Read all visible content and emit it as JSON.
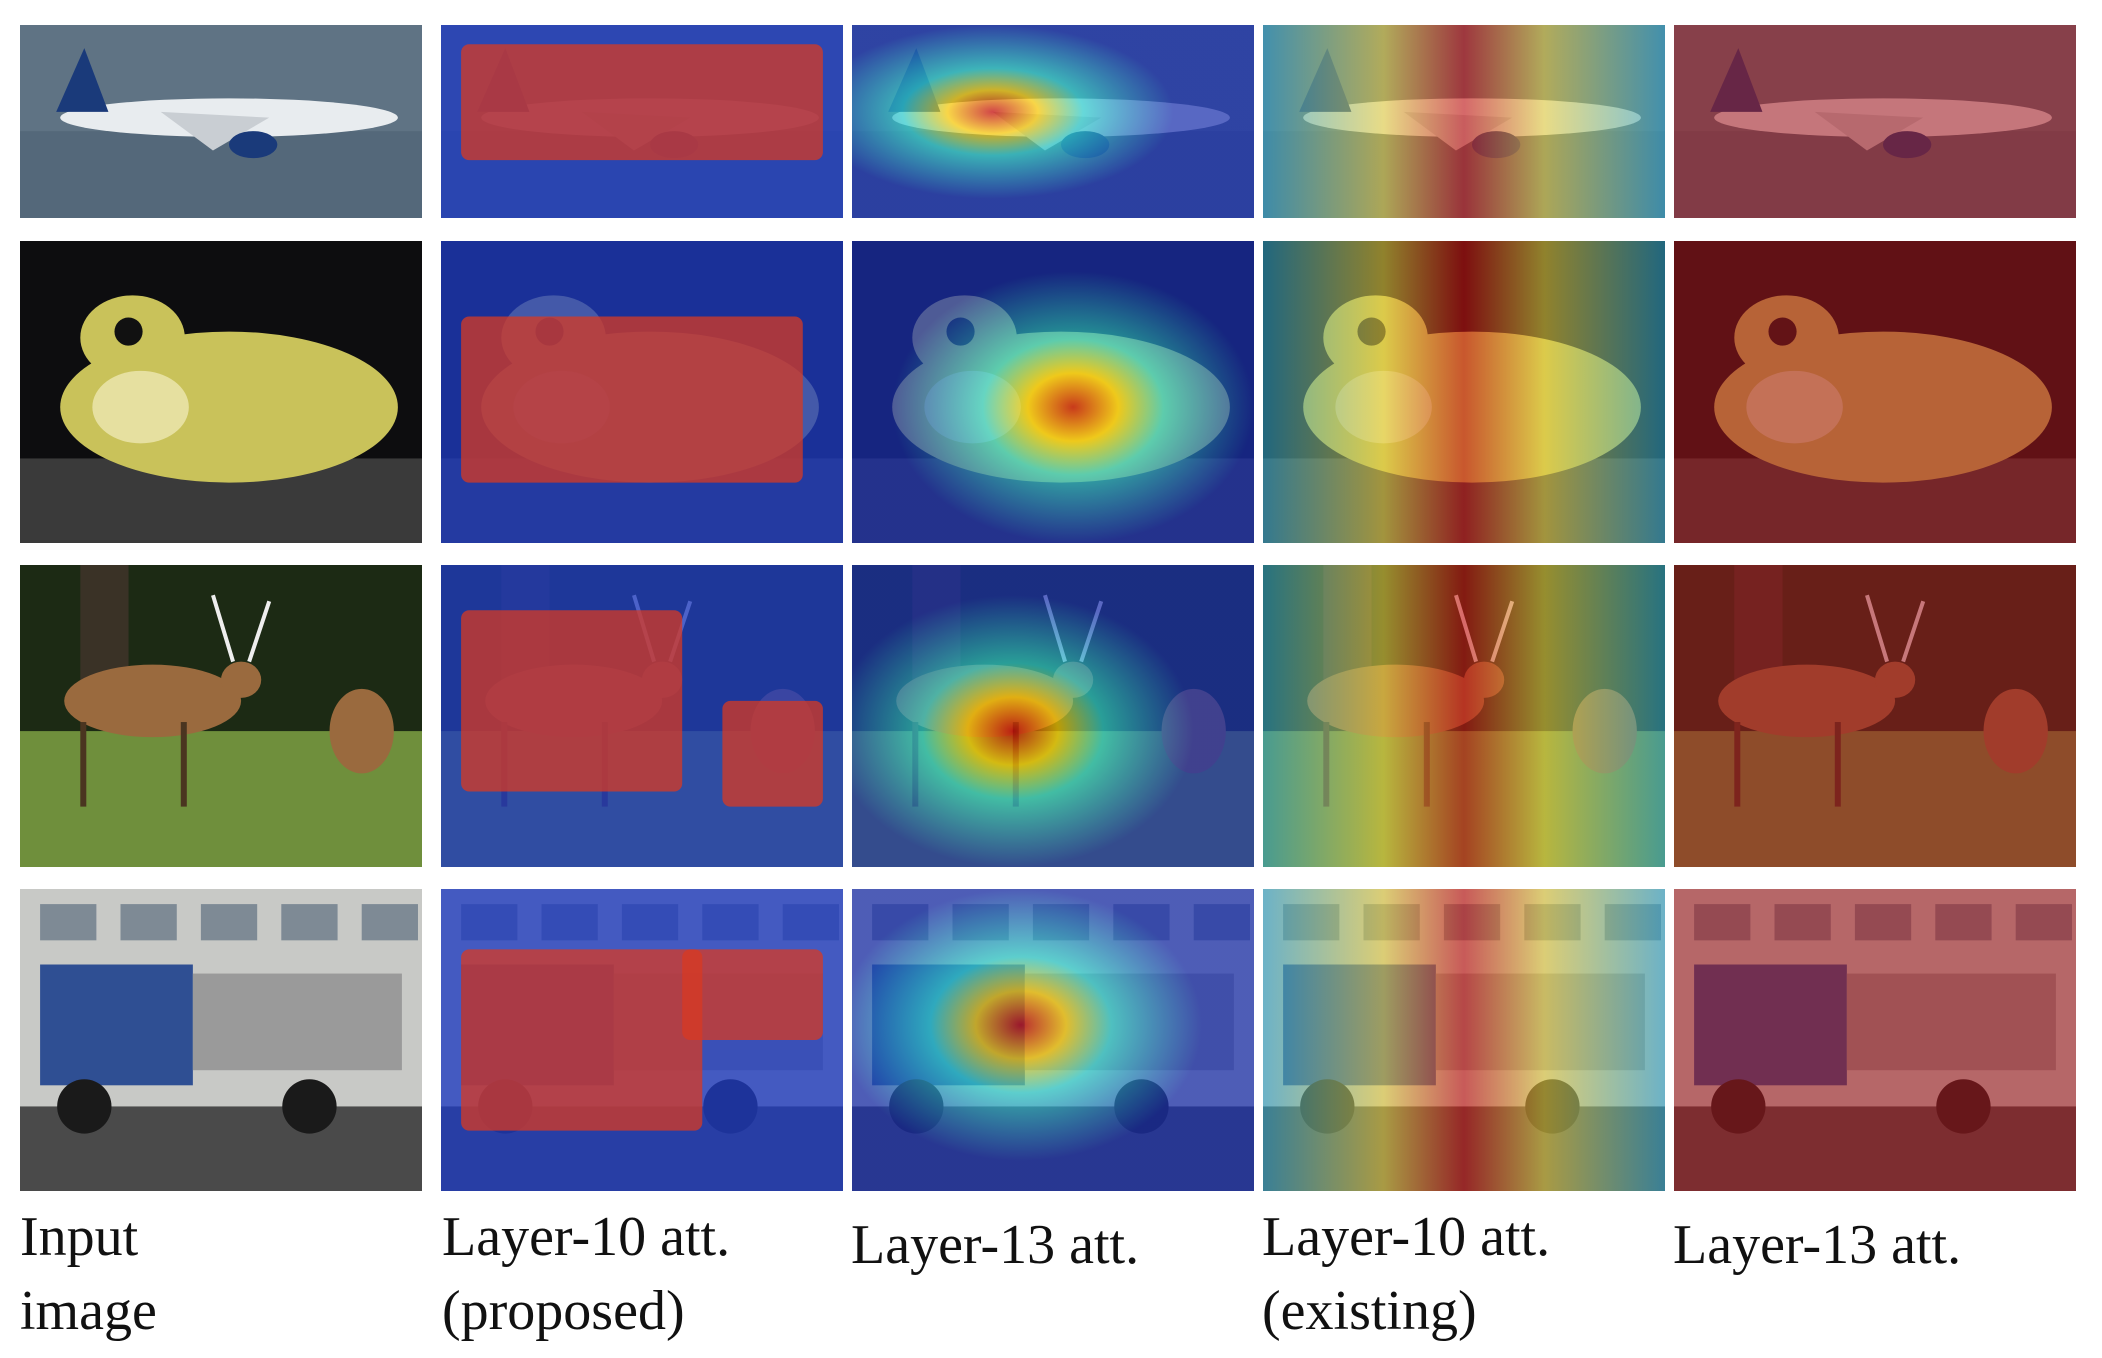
{
  "figure": {
    "rows": [
      {
        "subject": "airplane",
        "colors": {
          "bg": "#5f7384",
          "bg2": "#4a5d70",
          "main": "#e8ecef",
          "accent": "#1a3a7a"
        }
      },
      {
        "subject": "frog",
        "colors": {
          "bg": "#0d0d0f",
          "bg2": "#3a3a3a",
          "main": "#c9c25a",
          "accent": "#e6e0a0"
        }
      },
      {
        "subject": "deer",
        "colors": {
          "bg": "#3c5a2e",
          "bg2": "#1c2a14",
          "main": "#9a6a3e",
          "accent": "#6f8f3c"
        }
      },
      {
        "subject": "truck",
        "colors": {
          "bg": "#c8c9c6",
          "bg2": "#4a4a4a",
          "main": "#2f4f93",
          "accent": "#9a9a9a"
        }
      }
    ],
    "columns": [
      {
        "caption": "Input\nimage",
        "overlay": "none"
      },
      {
        "caption": "Layer-10 att.\n(proposed)",
        "overlay": "proposed-10"
      },
      {
        "caption": "Layer-13 att.",
        "overlay": "proposed-13"
      },
      {
        "caption": "Layer-10 att.\n(existing)",
        "overlay": "existing-10"
      },
      {
        "caption": "Layer-13 att.",
        "overlay": "existing-13"
      }
    ]
  }
}
